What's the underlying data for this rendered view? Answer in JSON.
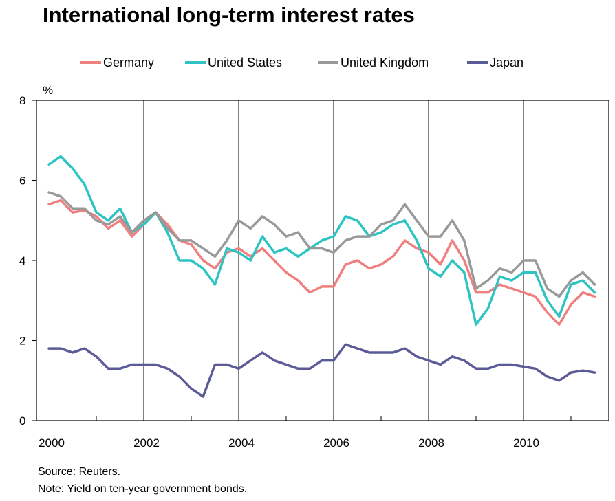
{
  "title": "International long-term interest rates",
  "source": "Source: Reuters.",
  "note": "Note: Yield on ten-year government bonds.",
  "chart_data": {
    "type": "line",
    "title": "International long-term interest rates",
    "ylabel": "%",
    "xlabel": "",
    "xlim": [
      2000,
      2012
    ],
    "ylim": [
      0,
      8
    ],
    "yticks": [
      0,
      2,
      4,
      6,
      8
    ],
    "xticks": [
      2000,
      2002,
      2004,
      2006,
      2008,
      2010
    ],
    "grid": "vertical lines at even years",
    "legend_position": "top",
    "x": [
      2000.0,
      2000.25,
      2000.5,
      2000.75,
      2001.0,
      2001.25,
      2001.5,
      2001.75,
      2002.0,
      2002.25,
      2002.5,
      2002.75,
      2003.0,
      2003.25,
      2003.5,
      2003.75,
      2004.0,
      2004.25,
      2004.5,
      2004.75,
      2005.0,
      2005.25,
      2005.5,
      2005.75,
      2006.0,
      2006.25,
      2006.5,
      2006.75,
      2007.0,
      2007.25,
      2007.5,
      2007.75,
      2008.0,
      2008.25,
      2008.5,
      2008.75,
      2009.0,
      2009.25,
      2009.5,
      2009.75,
      2010.0,
      2010.25,
      2010.5,
      2010.75,
      2011.0,
      2011.25,
      2011.5
    ],
    "series": [
      {
        "name": "Germany",
        "color": "#f08080",
        "values": [
          5.4,
          5.5,
          5.2,
          5.25,
          5.1,
          4.8,
          5.0,
          4.6,
          4.9,
          5.2,
          4.9,
          4.5,
          4.4,
          4.0,
          3.8,
          4.2,
          4.3,
          4.1,
          4.3,
          4.0,
          3.7,
          3.5,
          3.2,
          3.35,
          3.35,
          3.9,
          4.0,
          3.8,
          3.9,
          4.1,
          4.5,
          4.3,
          4.2,
          3.9,
          4.5,
          4.0,
          3.2,
          3.2,
          3.4,
          3.3,
          3.2,
          3.1,
          2.7,
          2.4,
          2.9,
          3.2,
          3.1
        ]
      },
      {
        "name": "United States",
        "color": "#2ec4c4",
        "values": [
          6.4,
          6.6,
          6.3,
          5.9,
          5.2,
          5.0,
          5.3,
          4.7,
          4.9,
          5.2,
          4.7,
          4.0,
          4.0,
          3.8,
          3.4,
          4.3,
          4.2,
          4.0,
          4.6,
          4.2,
          4.3,
          4.1,
          4.3,
          4.5,
          4.6,
          5.1,
          5.0,
          4.6,
          4.7,
          4.9,
          5.0,
          4.5,
          3.8,
          3.6,
          4.0,
          3.7,
          2.4,
          2.8,
          3.6,
          3.5,
          3.7,
          3.7,
          3.0,
          2.6,
          3.4,
          3.5,
          3.2
        ]
      },
      {
        "name": "United Kingdom",
        "color": "#999999",
        "values": [
          5.7,
          5.6,
          5.3,
          5.3,
          5.0,
          4.9,
          5.1,
          4.7,
          5.0,
          5.2,
          4.8,
          4.5,
          4.5,
          4.3,
          4.1,
          4.5,
          5.0,
          4.8,
          5.1,
          4.9,
          4.6,
          4.7,
          4.3,
          4.3,
          4.2,
          4.5,
          4.6,
          4.6,
          4.9,
          5.0,
          5.4,
          5.0,
          4.6,
          4.6,
          5.0,
          4.5,
          3.3,
          3.5,
          3.8,
          3.7,
          4.0,
          4.0,
          3.3,
          3.1,
          3.5,
          3.7,
          3.4
        ]
      },
      {
        "name": "Japan",
        "color": "#5b5b98",
        "values": [
          1.8,
          1.8,
          1.7,
          1.8,
          1.6,
          1.3,
          1.3,
          1.4,
          1.4,
          1.4,
          1.3,
          1.1,
          0.8,
          0.6,
          1.4,
          1.4,
          1.3,
          1.5,
          1.7,
          1.5,
          1.4,
          1.3,
          1.3,
          1.5,
          1.5,
          1.9,
          1.8,
          1.7,
          1.7,
          1.7,
          1.8,
          1.6,
          1.5,
          1.4,
          1.6,
          1.5,
          1.3,
          1.3,
          1.4,
          1.4,
          1.35,
          1.3,
          1.1,
          1.0,
          1.2,
          1.25,
          1.2
        ]
      }
    ]
  }
}
